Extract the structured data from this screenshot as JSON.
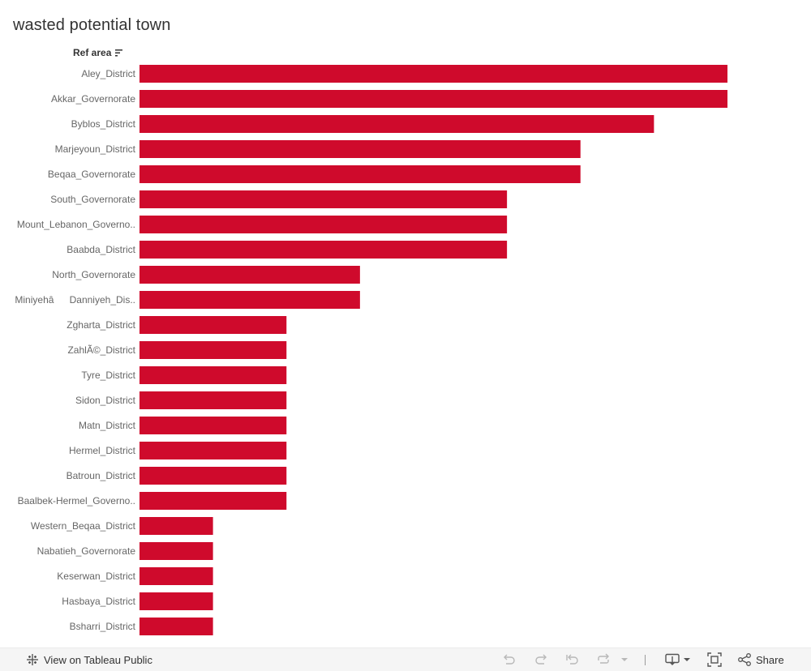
{
  "header": {
    "title": "wasted potential town",
    "column_label": "Ref area"
  },
  "colors": {
    "bar": "#cf0a2c",
    "label": "#666666"
  },
  "chart_data": {
    "type": "bar",
    "orientation": "horizontal",
    "title": "wasted potential town",
    "ylabel": "Ref area",
    "xlabel": "",
    "xlim": [
      0,
      8
    ],
    "categories": [
      "Aley_District",
      "Akkar_Governorate",
      "Byblos_District",
      "Marjeyoun_District",
      "Beqaa_Governorate",
      "South_Governorate",
      "Mount_Lebanon_Governo..",
      "Baabda_District",
      "North_Governorate",
      "MiniyehâDanniyeh_Dis..",
      "Zgharta_District",
      "ZahlÃ©_District",
      "Tyre_District",
      "Sidon_District",
      "Matn_District",
      "Hermel_District",
      "Batroun_District",
      "Baalbek-Hermel_Governo..",
      "Western_Beqaa_District",
      "Nabatieh_Governorate",
      "Keserwan_District",
      "Hasbaya_District",
      "Bsharri_District"
    ],
    "values": [
      8,
      8,
      7,
      6,
      6,
      5,
      5,
      5,
      3,
      3,
      2,
      2,
      2,
      2,
      2,
      2,
      2,
      2,
      1,
      1,
      1,
      1,
      1
    ]
  },
  "footer": {
    "view_label": "View on Tableau Public",
    "share_label": "Share",
    "icons": {
      "tableau": "tableau-logo-icon",
      "undo": "undo-icon",
      "redo": "redo-icon",
      "revert": "revert-icon",
      "refresh": "refresh-icon",
      "pause": "pause-dropdown-icon",
      "download": "download-icon",
      "fullscreen": "fullscreen-icon",
      "share": "share-icon"
    }
  }
}
